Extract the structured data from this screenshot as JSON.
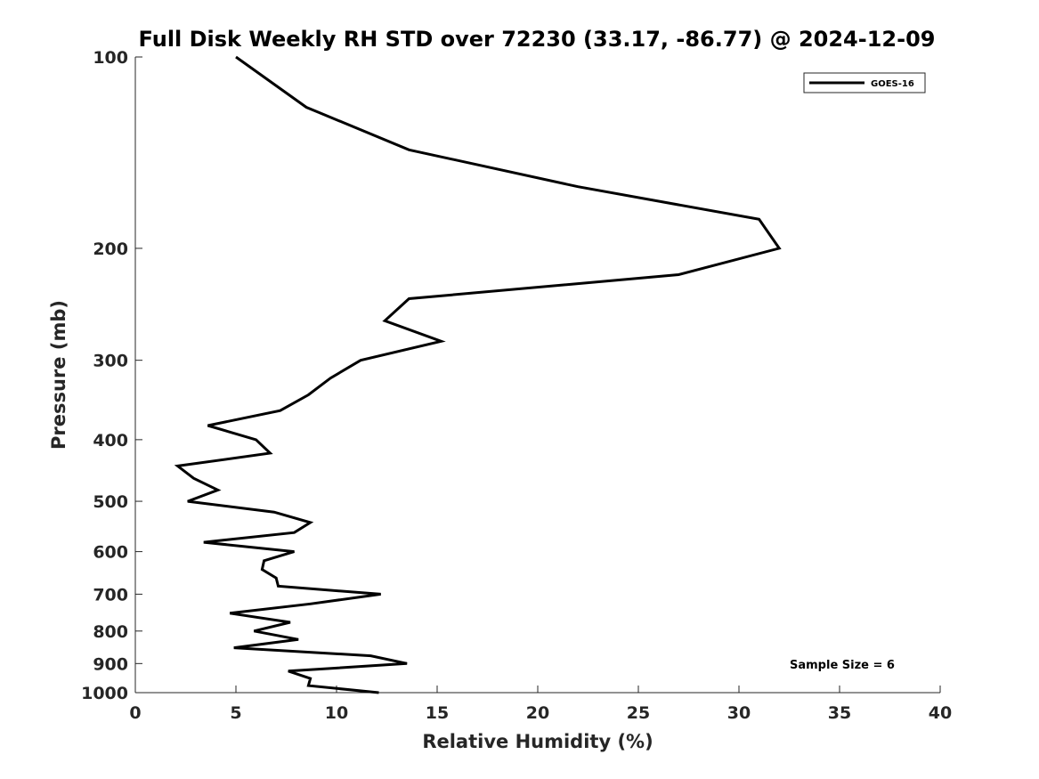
{
  "chart_data": {
    "type": "line",
    "title": "Full Disk Weekly RH STD over 72230 (33.17, -86.77) @ 2024-12-09",
    "xlabel": "Relative Humidity (%)",
    "ylabel": "Pressure (mb)",
    "xlim": [
      0,
      40
    ],
    "ylim": [
      100,
      1000
    ],
    "yscale": "log",
    "y_reversed": true,
    "x_ticks": [
      "0",
      "5",
      "10",
      "15",
      "20",
      "25",
      "30",
      "35",
      "40"
    ],
    "y_ticks": [
      "100",
      "200",
      "300",
      "400",
      "500",
      "600",
      "700",
      "800",
      "900",
      "1000"
    ],
    "grid": false,
    "legend": "top-right",
    "annotation": "Sample Size = 6",
    "series": [
      {
        "name": "GOES-16",
        "color": "#000000",
        "x": [
          5.0,
          8.5,
          13.6,
          22.0,
          31.0,
          32.0,
          27.0,
          13.6,
          12.4,
          15.2,
          11.2,
          9.7,
          8.6,
          7.2,
          3.6,
          6.0,
          6.7,
          2.1,
          2.9,
          4.1,
          2.6,
          6.9,
          8.7,
          7.9,
          3.4,
          7.9,
          6.4,
          6.3,
          7.0,
          7.1,
          12.2,
          8.7,
          4.7,
          7.7,
          5.9,
          8.1,
          4.9,
          11.7,
          13.5,
          7.6,
          8.7,
          8.6,
          12.1
        ],
        "y": [
          100,
          120,
          140,
          160,
          180,
          200,
          220,
          240,
          260,
          280,
          300,
          320,
          340,
          360,
          380,
          400,
          420,
          440,
          460,
          480,
          500,
          520,
          540,
          560,
          580,
          600,
          620,
          640,
          660,
          680,
          700,
          725,
          750,
          775,
          800,
          825,
          850,
          875,
          900,
          925,
          950,
          975,
          1000
        ]
      }
    ]
  }
}
